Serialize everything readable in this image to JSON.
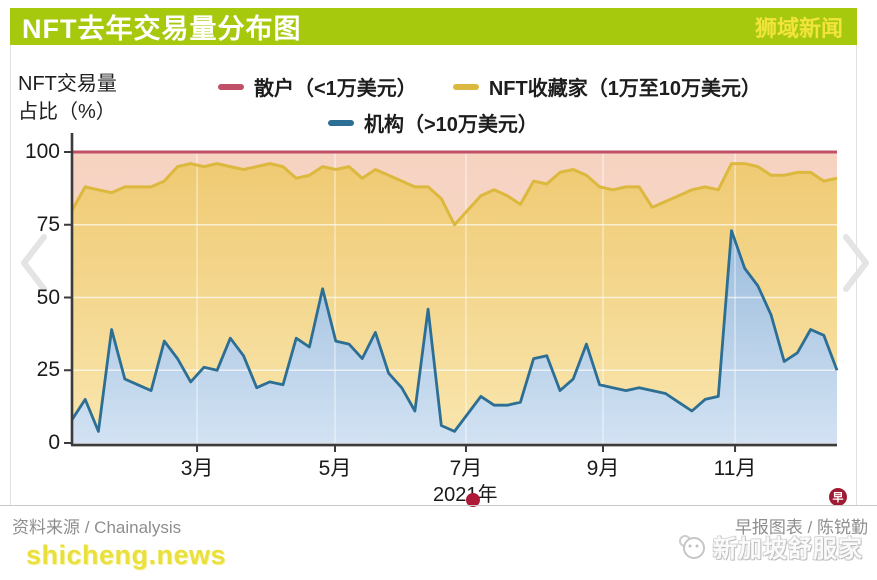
{
  "header": {
    "title": "NFT去年交易量分布图",
    "badge": "狮域新闻"
  },
  "chart": {
    "y_axis_label_line1": "NFT交易量",
    "y_axis_label_line2": "占比（%）"
  },
  "chart_data": {
    "type": "area",
    "title": "NFT去年交易量分布图",
    "ylabel": "NFT交易量占比（%）",
    "xlabel": "2021年",
    "ylim": [
      0,
      100
    ],
    "y_ticks": [
      0,
      25,
      50,
      75,
      100
    ],
    "x_ticks": [
      {
        "label": "3月",
        "index": 9.48
      },
      {
        "label": "5月",
        "index": 19.94
      },
      {
        "label": "7月",
        "index": 29.87
      },
      {
        "label": "9月",
        "index": 40.26
      },
      {
        "label": "11月",
        "index": 50.27
      }
    ],
    "grid": true,
    "legend_position": "top",
    "stacked_percent": true,
    "series": [
      {
        "name": "散户（<1万美元）",
        "color": "#c05068",
        "type": "constant",
        "value": 100
      },
      {
        "name": "NFT收藏家（1万至10万美元）",
        "color": "#dcb93e",
        "values": [
          80,
          88,
          87,
          86,
          88,
          88,
          88,
          90,
          95,
          96,
          95,
          96,
          95,
          94,
          95,
          96,
          95,
          91,
          92,
          95,
          94,
          95,
          91,
          94,
          92,
          90,
          88,
          88,
          84,
          75,
          80,
          85,
          87,
          85,
          82,
          90,
          89,
          93,
          94,
          92,
          88,
          87,
          88,
          88,
          81,
          83,
          85,
          87,
          88,
          87,
          96,
          96,
          95,
          92,
          92,
          93,
          93,
          90,
          91
        ]
      },
      {
        "name": "机构（>10万美元）",
        "color": "#2d6f94",
        "values": [
          8,
          15,
          4,
          39,
          22,
          20,
          18,
          35,
          29,
          21,
          26,
          25,
          36,
          30,
          19,
          21,
          20,
          36,
          33,
          53,
          35,
          34,
          29,
          38,
          24,
          19,
          11,
          46,
          6,
          4,
          10,
          16,
          13,
          13,
          14,
          29,
          30,
          18,
          22,
          34,
          20,
          19,
          18,
          19,
          18,
          17,
          14,
          11,
          15,
          16,
          73,
          60,
          54,
          44,
          28,
          31,
          39,
          37,
          25
        ]
      }
    ]
  },
  "theme": {
    "header_green": "#a6c90e",
    "badge_yellow": "#f2e43c",
    "fill_pink_top": "#f6d2c1",
    "fill_pink_bottom": "#f8dcc7",
    "fill_yellow_top": "#efc971",
    "fill_yellow_bottom": "#f9e6ae",
    "fill_blue_top": "#87aed4",
    "fill_blue_bottom": "#d2e2f3",
    "axis_color": "#3b3b3b",
    "red_dot": "#ad1a37",
    "logo_red": "#9d1c33",
    "shicheng_yellow": "#e9e03e"
  },
  "footer": {
    "source": "资料来源 / Chainalysis",
    "credit": "早报图表 / 陈锐勤",
    "logo_char": "早"
  },
  "bottom": {
    "watermark_left": "shicheng.news",
    "watermark_right": "新加坡舒服家"
  }
}
